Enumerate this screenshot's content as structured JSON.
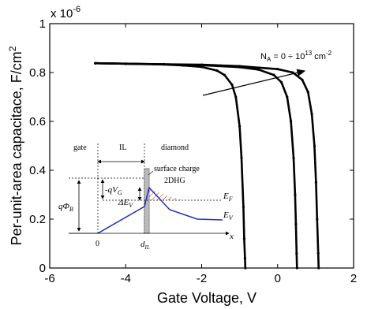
{
  "chart_data": {
    "type": "line",
    "xlabel": "Gate Voltage, V",
    "ylabel": "Per-unit-area capacitace, F/cm",
    "ylabel_sup": "2",
    "y_multiplier": "x 10",
    "y_multiplier_exp": "-6",
    "xlim": [
      -6,
      2
    ],
    "ylim": [
      0,
      1.0
    ],
    "x_ticks": [
      "-6",
      "-4",
      "-2",
      "0",
      "2"
    ],
    "y_ticks": [
      "0",
      "0.2",
      "0.4",
      "0.6",
      "0.8",
      "1"
    ],
    "grid": false,
    "annotation": {
      "prefix": "N",
      "sub": "A",
      "middle": " = 0 ÷ 10",
      "sup": "13",
      "unit": " cm",
      "unit_sup": "-2"
    },
    "series": [
      {
        "x": [
          -4.8,
          -4.0,
          -3.0,
          -2.5,
          -2.0,
          -1.6,
          -1.4,
          -1.2,
          -1.1,
          -1.0,
          -0.95,
          -0.9,
          -0.88,
          -0.86,
          -0.85
        ],
        "y": [
          0.838,
          0.836,
          0.833,
          0.829,
          0.823,
          0.808,
          0.79,
          0.75,
          0.7,
          0.58,
          0.45,
          0.25,
          0.12,
          0.04,
          0.0
        ]
      },
      {
        "x": [
          -4.8,
          -4.0,
          -3.0,
          -2.0,
          -1.0,
          -0.5,
          -0.1,
          0.1,
          0.25,
          0.35,
          0.42,
          0.46,
          0.48,
          0.5,
          0.51
        ],
        "y": [
          0.838,
          0.836,
          0.834,
          0.83,
          0.822,
          0.812,
          0.79,
          0.76,
          0.7,
          0.6,
          0.45,
          0.3,
          0.18,
          0.06,
          0.0
        ]
      },
      {
        "x": [
          -4.8,
          -4.0,
          -3.0,
          -2.0,
          -1.0,
          0.0,
          0.4,
          0.65,
          0.8,
          0.9,
          0.97,
          1.01,
          1.04,
          1.07,
          1.08
        ],
        "y": [
          0.838,
          0.836,
          0.834,
          0.832,
          0.826,
          0.814,
          0.8,
          0.77,
          0.72,
          0.63,
          0.5,
          0.35,
          0.2,
          0.06,
          0.0
        ]
      }
    ],
    "inset": {
      "region_labels": [
        "gate",
        "IL",
        "diamond"
      ],
      "surface_charge": "surface charge",
      "two_dhg": "2DHG",
      "qvg": "-qV",
      "qvg_sub": "G",
      "qphib": "qΦ",
      "qphib_sub": "B",
      "delta_ev": "ΔE",
      "delta_ev_sub": "V",
      "ef": "E",
      "ef_sub": "F",
      "ev": "E",
      "ev_sub": "V",
      "x_axis": "x",
      "zero": "0",
      "dil": "d",
      "dil_sub": "IL"
    }
  }
}
